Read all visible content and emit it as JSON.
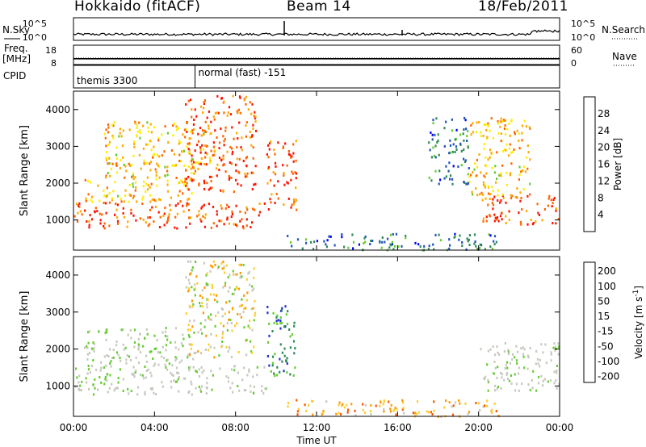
{
  "header": {
    "station": "Hokkaido (fitACF)",
    "beam": "Beam 14",
    "date": "18/Feb/2011"
  },
  "status_panel": {
    "left_label": "N.Sky",
    "right_label": "N.Search",
    "left_ticks": [
      "10^5",
      "10^0"
    ],
    "right_ticks": [
      "10^5",
      "10^0"
    ]
  },
  "freq_panel": {
    "left_label_top": "Freq.",
    "left_label_unit": "[MHz]",
    "right_label": "Nave",
    "left_ticks": [
      "18",
      "8"
    ],
    "right_ticks": [
      "60",
      "0"
    ],
    "freq_value": 11,
    "nave_value": 20
  },
  "cpid_panel": {
    "label": "CPID",
    "segments": [
      {
        "name": "themis 3300",
        "start": "00:00",
        "end": "06:00"
      },
      {
        "name": "normal (fast) -151",
        "start": "06:00",
        "end": "00:00"
      }
    ]
  },
  "chart_data": [
    {
      "type": "heatmap",
      "title": "Power",
      "ylabel": "Slant Range [km]",
      "xlabel": "Time UT",
      "x_ticks": [
        "00:00",
        "04:00",
        "08:00",
        "12:00",
        "16:00",
        "20:00",
        "00:00"
      ],
      "y_ticks": [
        1000,
        2000,
        3000,
        4000
      ],
      "xlim_hours": [
        0,
        24
      ],
      "ylim_km": [
        180,
        4500
      ],
      "colorbar": {
        "label": "Power [dB]",
        "ticks": [
          4,
          8,
          12,
          16,
          20,
          24,
          28
        ],
        "range": [
          0,
          32
        ],
        "colors": [
          "#0000ff",
          "#2255bb",
          "#2e8b57",
          "#66cc33",
          "#ffee00",
          "#ffaa00",
          "#ff6600",
          "#ff1100"
        ]
      },
      "echo_regions": [
        {
          "t0": 0.0,
          "t1": 9.5,
          "r0": 800,
          "r1": 1500,
          "power": "high"
        },
        {
          "t0": 0.5,
          "t1": 6.0,
          "r0": 1500,
          "r1": 2600,
          "power": "medium"
        },
        {
          "t0": 1.5,
          "t1": 7.0,
          "r0": 2500,
          "r1": 3700,
          "power": "medium"
        },
        {
          "t0": 5.5,
          "t1": 9.0,
          "r0": 1800,
          "r1": 4400,
          "power": "high"
        },
        {
          "t0": 9.5,
          "t1": 11.0,
          "r0": 1300,
          "r1": 3200,
          "power": "high"
        },
        {
          "t0": 10.5,
          "t1": 21.0,
          "r0": 200,
          "r1": 650,
          "power": "low"
        },
        {
          "t0": 17.5,
          "t1": 19.5,
          "r0": 2000,
          "r1": 3800,
          "power": "low"
        },
        {
          "t0": 20.0,
          "t1": 24.0,
          "r0": 900,
          "r1": 1700,
          "power": "high"
        },
        {
          "t0": 19.5,
          "t1": 22.5,
          "r0": 1600,
          "r1": 3800,
          "power": "medium"
        }
      ]
    },
    {
      "type": "heatmap",
      "title": "Velocity",
      "ylabel": "Slant Range [km]",
      "xlabel": "Time UT",
      "x_ticks": [
        "00:00",
        "04:00",
        "08:00",
        "12:00",
        "16:00",
        "20:00",
        "00:00"
      ],
      "y_ticks": [
        1000,
        2000,
        3000,
        4000
      ],
      "xlim_hours": [
        0,
        24
      ],
      "ylim_km": [
        180,
        4500
      ],
      "colorbar": {
        "label": "Velocity [m s^-1]",
        "ticks": [
          200,
          100,
          50,
          15,
          -15,
          -50,
          -100,
          -200
        ],
        "colors": [
          "#2233cc",
          "#2e8b57",
          "#66cc33",
          "#c8c8c0",
          "#ffcc33",
          "#ff9900",
          "#ff5500",
          "#ff0000"
        ]
      },
      "echo_regions": [
        {
          "t0": 0.0,
          "t1": 9.5,
          "r0": 800,
          "r1": 1600,
          "velocity": "ground scatter"
        },
        {
          "t0": 0.5,
          "t1": 6.0,
          "r0": 1600,
          "r1": 2600,
          "velocity": "ground scatter"
        },
        {
          "t0": 5.5,
          "t1": 9.0,
          "r0": 1800,
          "r1": 4400,
          "velocity": "mixed"
        },
        {
          "t0": 9.5,
          "t1": 11.0,
          "r0": 1300,
          "r1": 3200,
          "velocity": "positive"
        },
        {
          "t0": 10.5,
          "t1": 21.0,
          "r0": 200,
          "r1": 650,
          "velocity": "negative"
        },
        {
          "t0": 20.0,
          "t1": 24.0,
          "r0": 900,
          "r1": 2200,
          "velocity": "ground scatter"
        }
      ]
    }
  ],
  "xaxis": {
    "ticks": [
      "00:00",
      "04:00",
      "08:00",
      "12:00",
      "16:00",
      "20:00",
      "00:00"
    ],
    "label": "Time UT"
  }
}
